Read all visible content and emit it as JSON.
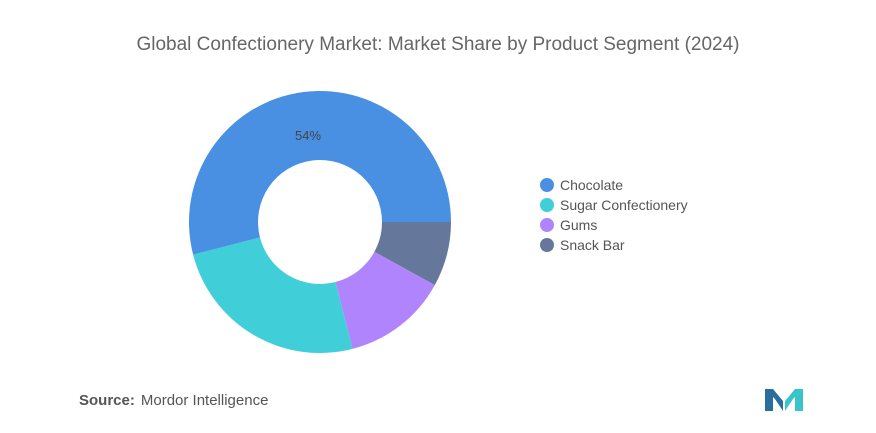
{
  "chart_data": {
    "type": "pie",
    "title": "Global Confectionery Market: Market Share by Product Segment (2024)",
    "categories": [
      "Chocolate",
      "Sugar Confectionery",
      "Gums",
      "Snack Bar"
    ],
    "values": [
      54,
      25,
      13,
      8
    ],
    "data_labels": [
      "54%",
      "",
      "",
      ""
    ],
    "colors": [
      "#4a90e2",
      "#40cfd9",
      "#b084fc",
      "#65789b"
    ],
    "legend_position": "right"
  },
  "source": {
    "label": "Source:",
    "value": "Mordor Intelligence"
  },
  "logo": {
    "icon": "mordor-intelligence-logo-icon",
    "colors": [
      "#2a6e9e",
      "#39c4c9"
    ]
  }
}
